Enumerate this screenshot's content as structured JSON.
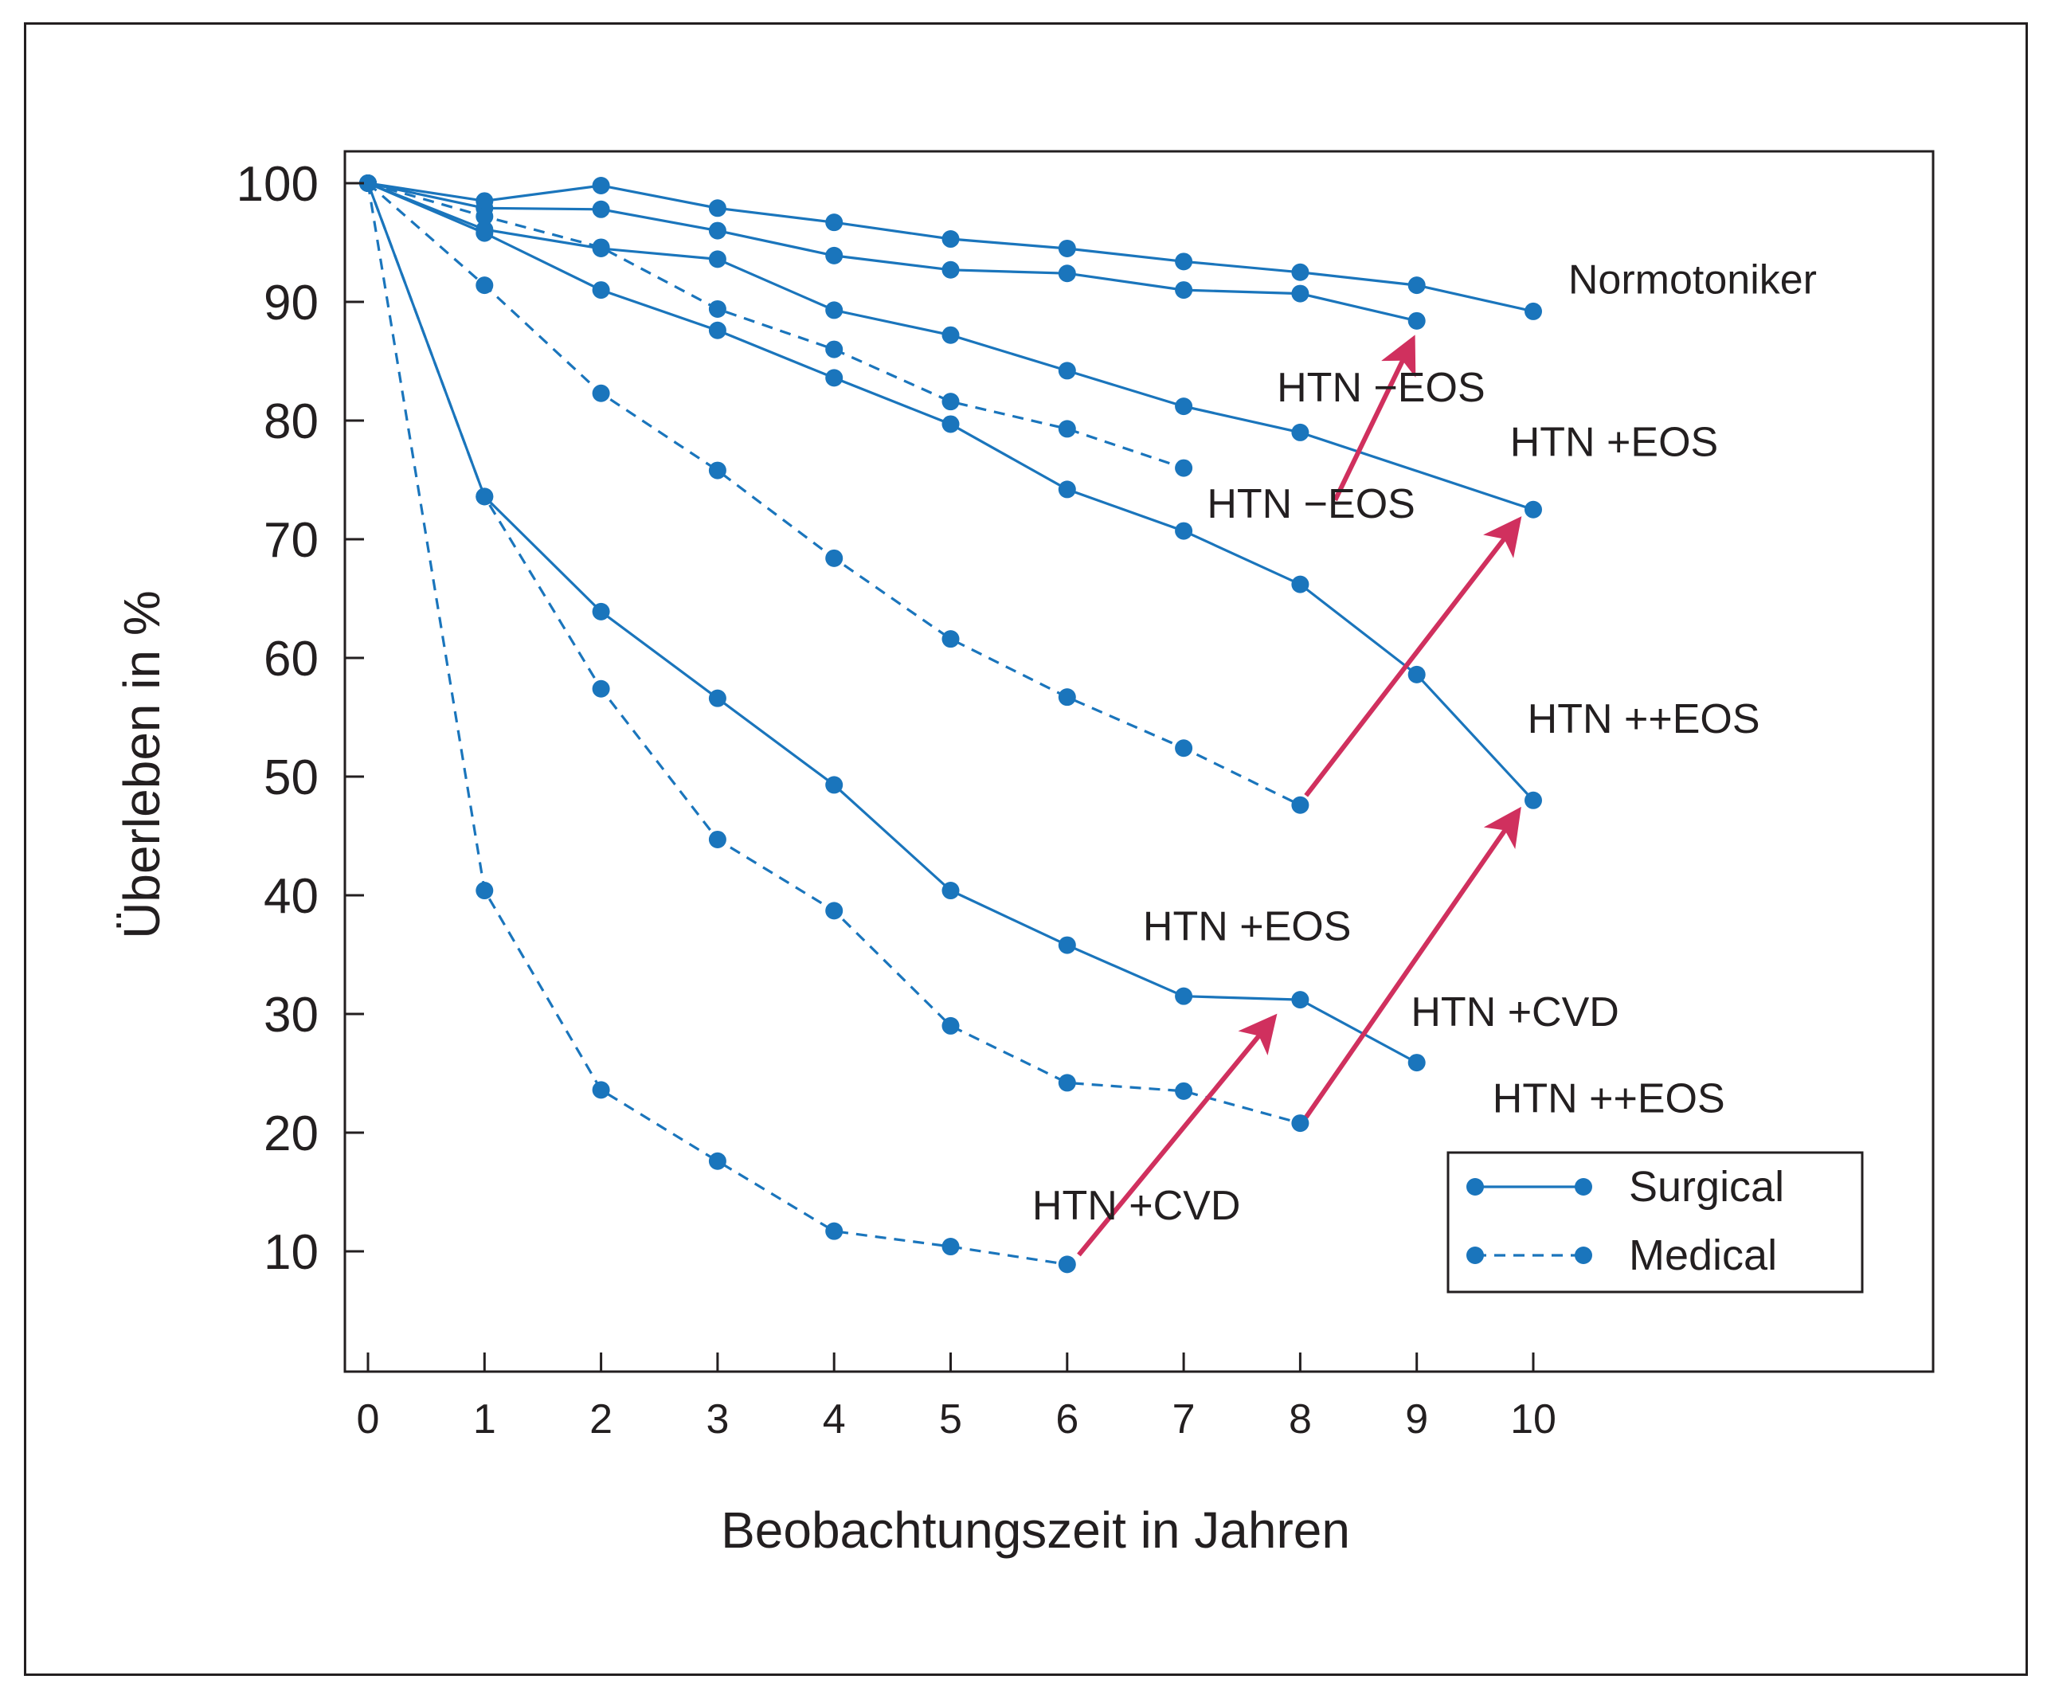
{
  "chart_data": {
    "type": "line",
    "title": "",
    "xlabel": "Beobachtungszeit in Jahren",
    "ylabel": "Überleben in %",
    "xlim": [
      0,
      13.4
    ],
    "ylim": [
      0,
      102
    ],
    "x_ticks": [
      "0",
      "1",
      "2",
      "3",
      "4",
      "5",
      "6",
      "7",
      "8",
      "9",
      "10"
    ],
    "y_ticks": [
      "10",
      "20",
      "30",
      "40",
      "50",
      "60",
      "70",
      "80",
      "90",
      "100"
    ],
    "legend": {
      "position": "bottom-right",
      "entries": [
        {
          "label": "Surgical",
          "style": "solid"
        },
        {
          "label": "Medical",
          "style": "dashed"
        }
      ]
    },
    "colors": {
      "series": "#1a75bc",
      "arrow": "#d0305e",
      "text": "#231f20"
    },
    "series": [
      {
        "name": "Normotoniker",
        "group": "Surgical",
        "style": "solid",
        "x": [
          0,
          1,
          2,
          3,
          4,
          5,
          6,
          7,
          8,
          9,
          10
        ],
        "y": [
          100,
          98.5,
          99.8,
          97.9,
          96.7,
          95.3,
          94.5,
          93.4,
          92.5,
          91.4,
          89.2
        ]
      },
      {
        "name": "HTN −EOS (Surgical)",
        "group": "Surgical",
        "style": "solid",
        "x": [
          0,
          1,
          2,
          3,
          4,
          5,
          6,
          7,
          8,
          9
        ],
        "y": [
          100,
          97.9,
          97.8,
          96.0,
          93.9,
          92.7,
          92.4,
          91.0,
          90.7,
          88.4
        ]
      },
      {
        "name": "HTN +EOS (Surgical)",
        "group": "Surgical",
        "style": "solid",
        "x": [
          0,
          1,
          2,
          3,
          4,
          5,
          6,
          7,
          8,
          10
        ],
        "y": [
          100,
          96.1,
          94.5,
          93.6,
          89.3,
          87.2,
          84.2,
          81.2,
          79.0,
          72.5
        ]
      },
      {
        "name": "HTN ++EOS (Surgical)",
        "group": "Surgical",
        "style": "solid",
        "x": [
          0,
          1,
          2,
          3,
          4,
          5,
          6,
          7,
          8,
          9,
          10
        ],
        "y": [
          100,
          95.8,
          91.0,
          87.6,
          83.6,
          79.7,
          74.2,
          70.7,
          66.2,
          58.6,
          48.0
        ]
      },
      {
        "name": "HTN −EOS (Medical)",
        "group": "Medical",
        "style": "dashed",
        "x": [
          0,
          1,
          2,
          3,
          4,
          5,
          6,
          7
        ],
        "y": [
          100,
          97.2,
          94.6,
          89.4,
          86.0,
          81.6,
          79.3,
          76.0
        ]
      },
      {
        "name": "HTN +EOS (Medical)",
        "group": "Medical",
        "style": "dashed",
        "x": [
          0,
          1,
          2,
          3,
          4,
          5,
          6,
          7,
          8
        ],
        "y": [
          100,
          91.4,
          82.3,
          75.8,
          68.4,
          61.6,
          56.7,
          52.4,
          47.6
        ]
      },
      {
        "name": "HTN +CVD (Surgical)",
        "group": "Surgical",
        "style": "solid",
        "x": [
          0,
          1,
          2,
          3,
          4,
          5,
          6,
          7,
          8,
          9
        ],
        "y": [
          100,
          73.6,
          63.9,
          56.6,
          49.3,
          40.4,
          35.8,
          31.5,
          31.2,
          25.9
        ]
      },
      {
        "name": "HTN ++EOS (Medical)",
        "group": "Medical",
        "style": "dashed",
        "x": [
          0,
          1,
          2,
          3,
          4,
          5,
          6,
          7,
          8
        ],
        "y": [
          100,
          73.6,
          57.4,
          44.7,
          38.7,
          29.0,
          24.2,
          23.5,
          20.8
        ]
      },
      {
        "name": "HTN +CVD (Medical)",
        "group": "Medical",
        "style": "dashed",
        "x": [
          0,
          1,
          2,
          3,
          4,
          5,
          6
        ],
        "y": [
          100,
          40.4,
          23.6,
          17.6,
          11.7,
          10.4,
          8.9
        ]
      }
    ],
    "annotations": [
      {
        "text": "Normotoniker",
        "x": 10.3,
        "y": 90.7
      },
      {
        "text": "HTN −EOS",
        "x": 7.8,
        "y": 81.6
      },
      {
        "text": "HTN −EOS",
        "x": 7.2,
        "y": 71.8
      },
      {
        "text": "HTN +EOS",
        "x": 9.8,
        "y": 77.0
      },
      {
        "text": "HTN ++EOS",
        "x": 9.95,
        "y": 53.7
      },
      {
        "text": "HTN +EOS",
        "x": 6.65,
        "y": 36.2
      },
      {
        "text": "HTN +CVD",
        "x": 8.95,
        "y": 29.0
      },
      {
        "text": "HTN ++EOS",
        "x": 9.65,
        "y": 21.7
      },
      {
        "text": "HTN +CVD",
        "x": 5.7,
        "y": 12.7
      }
    ],
    "arrows": [
      {
        "from": [
          8.3,
          73.3
        ],
        "to": [
          8.95,
          86.5
        ]
      },
      {
        "from": [
          8.05,
          48.4
        ],
        "to": [
          9.85,
          71.3
        ]
      },
      {
        "from": [
          8.05,
          21.3
        ],
        "to": [
          9.85,
          46.8
        ]
      },
      {
        "from": [
          6.1,
          9.7
        ],
        "to": [
          7.75,
          29.4
        ]
      }
    ]
  }
}
